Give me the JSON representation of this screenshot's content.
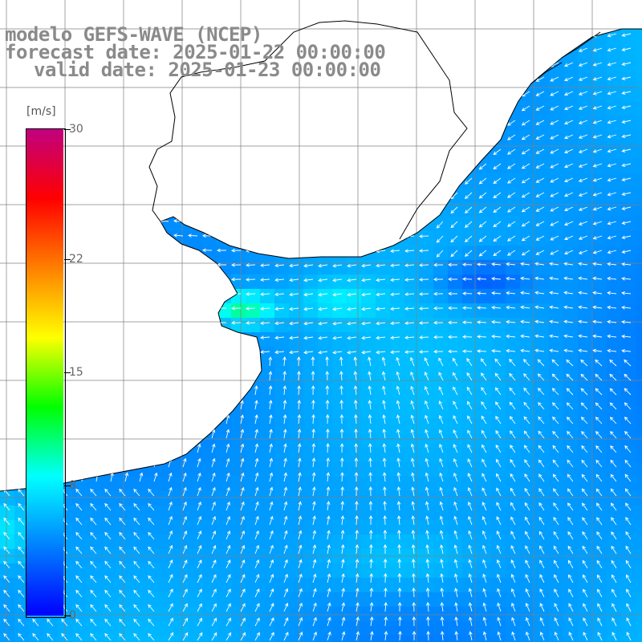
{
  "title": {
    "line1": "modelo GEFS-WAVE (NCEP)",
    "line2": "forecast date: 2025-01-22 00:00:00",
    "line3": "valid date: 2025-01-23 00:00:00"
  },
  "colorbar": {
    "units": "[m/s]",
    "min": 0,
    "max": 30,
    "tick_labels": [
      {
        "label": "30",
        "value": 30
      },
      {
        "label": "22",
        "value": 22
      },
      {
        "label": "15",
        "value": 15
      },
      {
        "label": "8",
        "value": 8
      },
      {
        "label": "0",
        "value": 0
      }
    ],
    "colors": [
      "#0000ff",
      "#0080ff",
      "#00ffff",
      "#00ff00",
      "#ffff00",
      "#ff8000",
      "#ff0000",
      "#c00080"
    ]
  },
  "map": {
    "land_color": "#ffffff",
    "grid_color": "#808080",
    "coast_color": "#000000",
    "arrow_color": "#ffffff",
    "grid": "on"
  }
}
